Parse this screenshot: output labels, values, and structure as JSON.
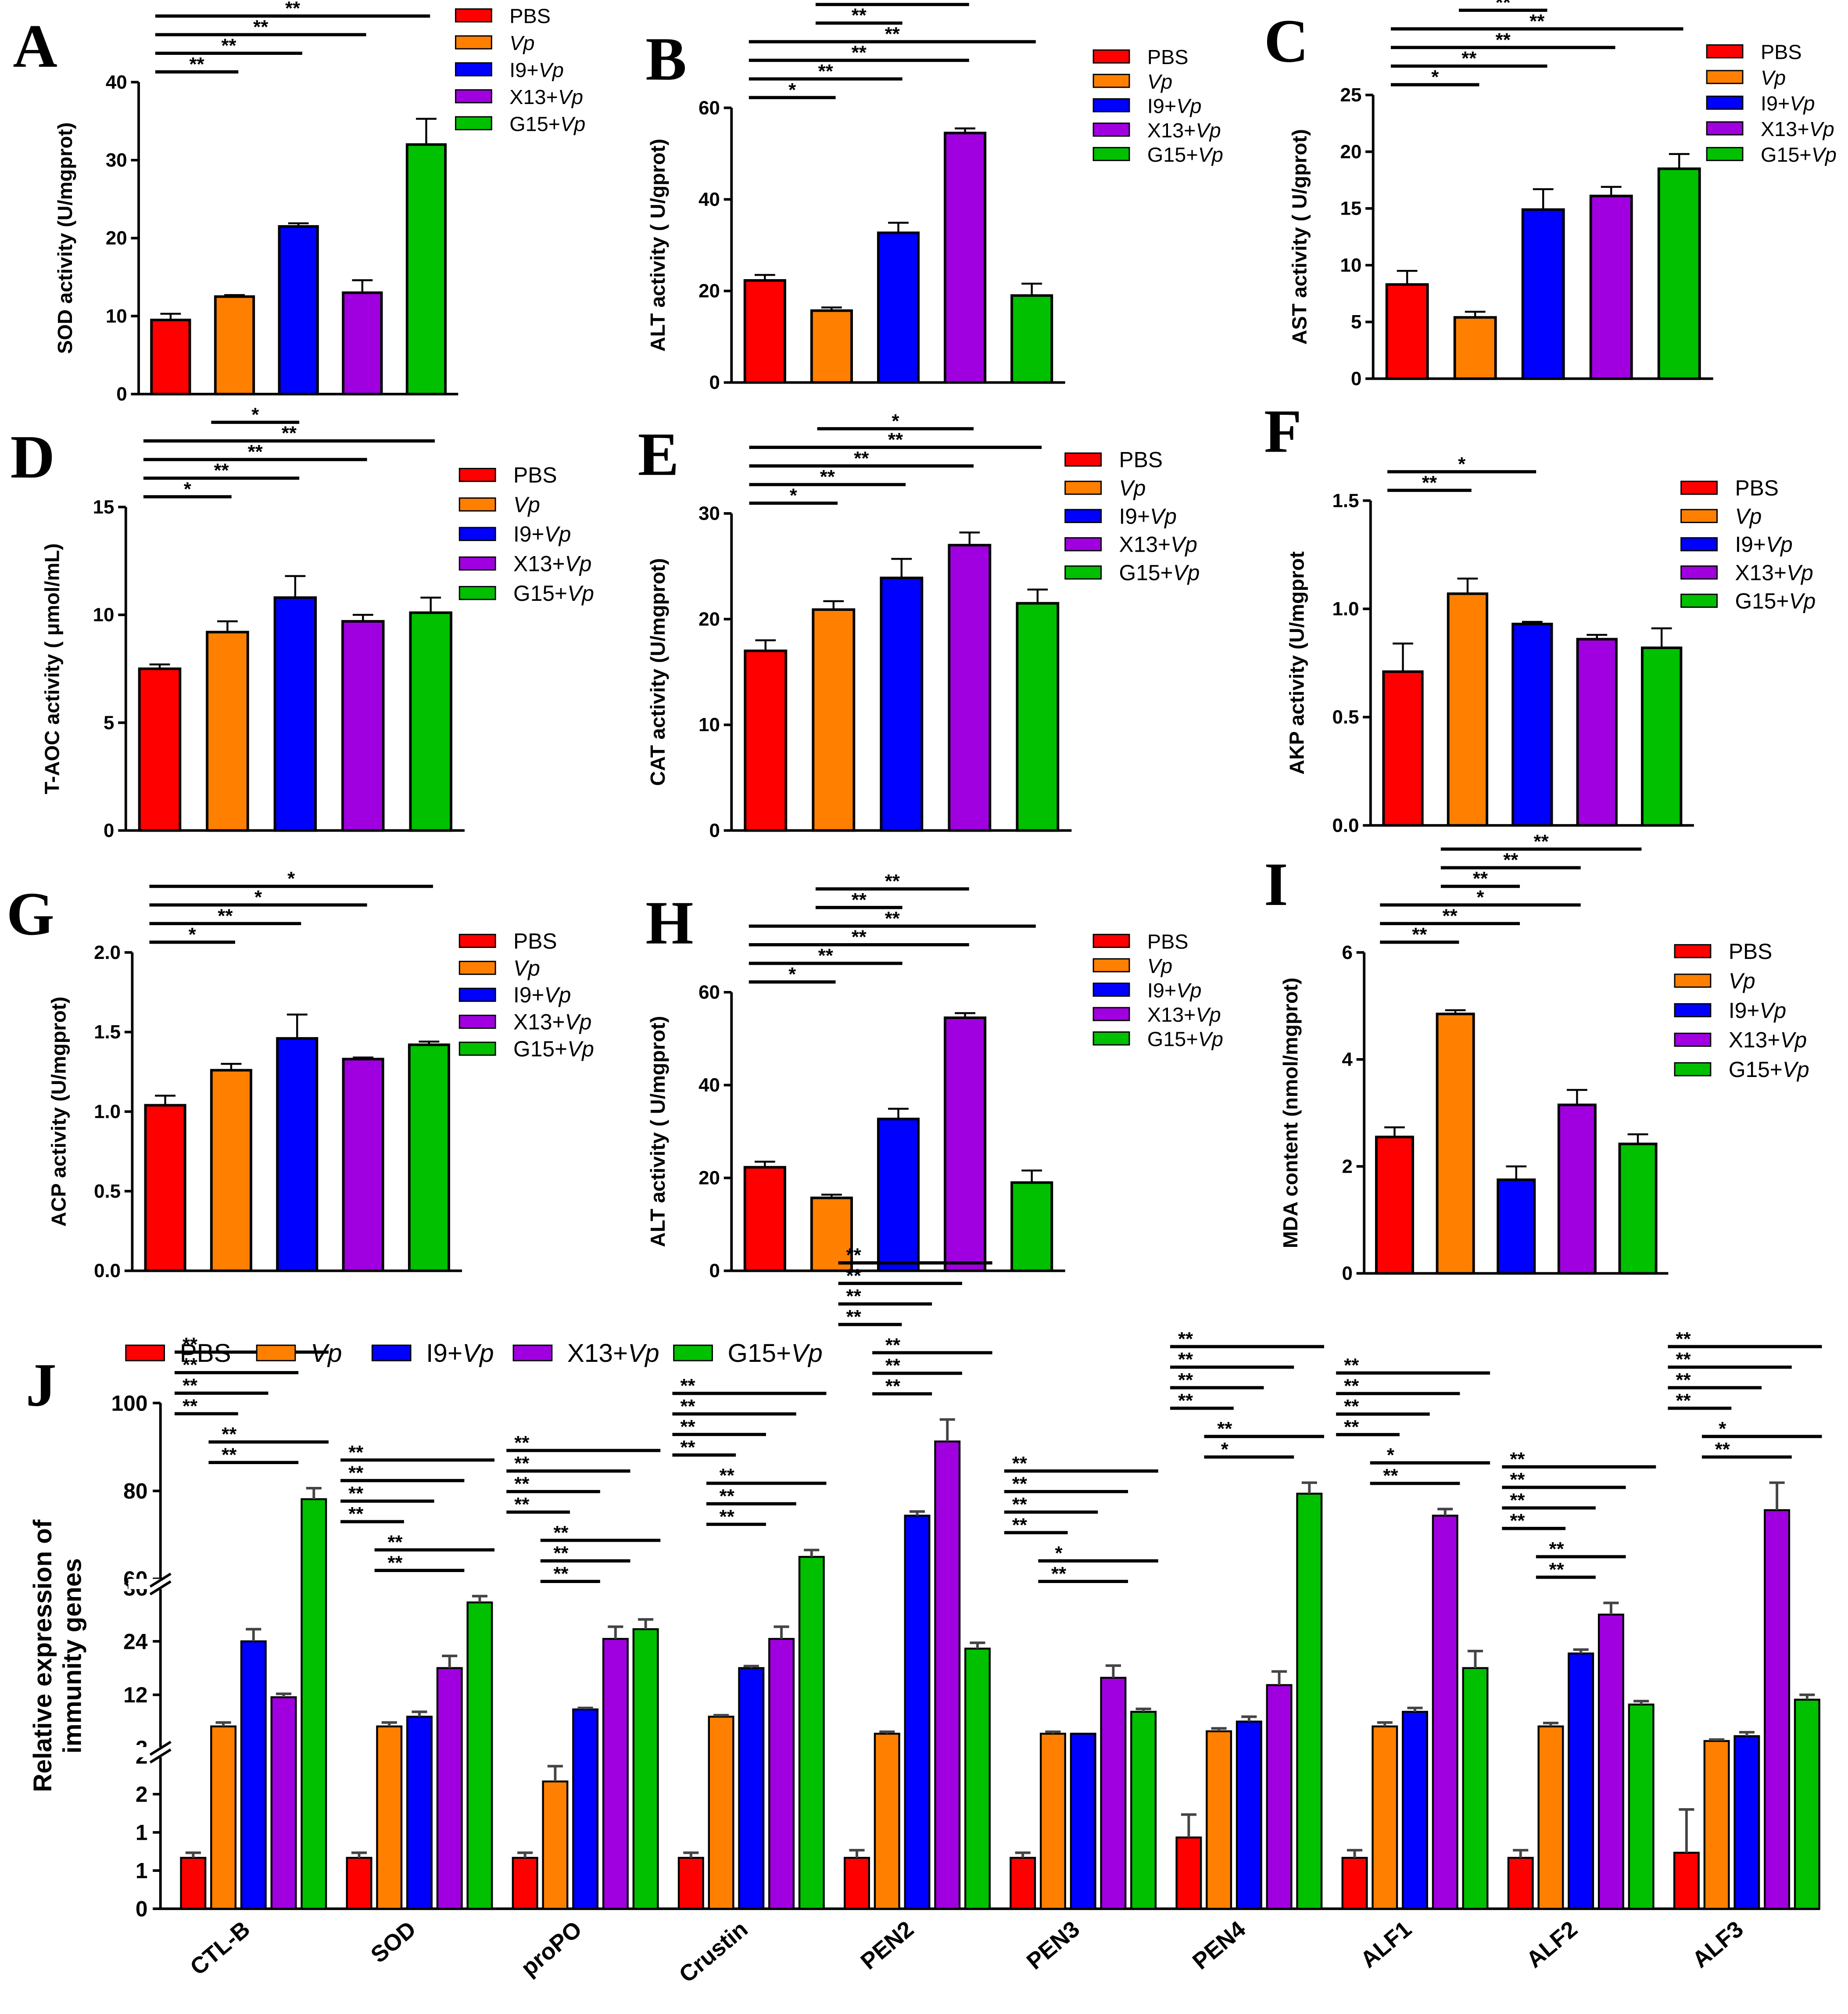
{
  "groups": [
    "PBS",
    "Vp",
    "I9+Vp",
    "X13+Vp",
    "G15+Vp"
  ],
  "colors": [
    "#ff0000",
    "#ff8000",
    "#0000ff",
    "#a000e0",
    "#00c000"
  ],
  "chart_data": [
    {
      "id": "A",
      "type": "bar",
      "ylabel": "SOD activity (U/mgprot)",
      "ylim": [
        0,
        40
      ],
      "ticks": [
        0,
        10,
        20,
        30,
        40
      ],
      "values": [
        9.5,
        12.5,
        21.5,
        13,
        32
      ],
      "errors": [
        0.8,
        0.2,
        0.4,
        1.6,
        3.3
      ],
      "sig": [
        {
          "a": 0,
          "b": 1,
          "t": "**"
        },
        {
          "a": 0,
          "b": 2,
          "t": "**"
        },
        {
          "a": 0,
          "b": 3,
          "t": "**"
        },
        {
          "a": 0,
          "b": 4,
          "t": "**"
        },
        {
          "a": 1,
          "b": 2,
          "t": "**"
        },
        {
          "a": 1,
          "b": 4,
          "t": "**"
        }
      ]
    },
    {
      "id": "B",
      "type": "bar",
      "ylabel": "ALT activity ( U/gprot)",
      "ylim": [
        0,
        60
      ],
      "ticks": [
        0,
        20,
        40,
        60
      ],
      "values": [
        22.3,
        15.7,
        32.7,
        54.5,
        19
      ],
      "errors": [
        1.2,
        0.7,
        2.2,
        1,
        2.6
      ],
      "sig": [
        {
          "a": 0,
          "b": 1,
          "t": "*"
        },
        {
          "a": 0,
          "b": 2,
          "t": "**"
        },
        {
          "a": 0,
          "b": 3,
          "t": "**"
        },
        {
          "a": 0,
          "b": 4,
          "t": "**"
        },
        {
          "a": 1,
          "b": 2,
          "t": "**"
        },
        {
          "a": 1,
          "b": 3,
          "t": "**"
        }
      ]
    },
    {
      "id": "C",
      "type": "bar",
      "ylabel": "AST activity ( U/gprot)",
      "ylim": [
        0,
        25
      ],
      "ticks": [
        0,
        5,
        10,
        15,
        20,
        25
      ],
      "values": [
        8.3,
        5.4,
        14.9,
        16.1,
        18.5
      ],
      "errors": [
        1.2,
        0.5,
        1.8,
        0.8,
        1.3
      ],
      "sig": [
        {
          "a": 0,
          "b": 1,
          "t": "*"
        },
        {
          "a": 0,
          "b": 2,
          "t": "**"
        },
        {
          "a": 0,
          "b": 3,
          "t": "**"
        },
        {
          "a": 0,
          "b": 4,
          "t": "**"
        },
        {
          "a": 1,
          "b": 2,
          "t": "**"
        },
        {
          "a": 1,
          "b": 3,
          "t": "**"
        },
        {
          "a": 1,
          "b": 4,
          "t": "**"
        }
      ]
    },
    {
      "id": "D",
      "type": "bar",
      "ylabel": "T-AOC activity ( μmol/mL)",
      "ylim": [
        0,
        15
      ],
      "ticks": [
        0,
        5,
        10,
        15
      ],
      "values": [
        7.5,
        9.2,
        10.8,
        9.7,
        10.1
      ],
      "errors": [
        0.2,
        0.5,
        1,
        0.3,
        0.7
      ],
      "sig": [
        {
          "a": 0,
          "b": 1,
          "t": "*"
        },
        {
          "a": 0,
          "b": 2,
          "t": "**"
        },
        {
          "a": 0,
          "b": 3,
          "t": "**"
        },
        {
          "a": 0,
          "b": 4,
          "t": "**"
        },
        {
          "a": 1,
          "b": 2,
          "t": "*"
        }
      ]
    },
    {
      "id": "E",
      "type": "bar",
      "ylabel": "CAT activity (U/mgprot)",
      "ylim": [
        0,
        30
      ],
      "ticks": [
        0,
        10,
        20,
        30
      ],
      "values": [
        17,
        20.9,
        23.9,
        27,
        21.5
      ],
      "errors": [
        1,
        0.8,
        1.8,
        1.2,
        1.3
      ],
      "sig": [
        {
          "a": 0,
          "b": 1,
          "t": "*"
        },
        {
          "a": 0,
          "b": 2,
          "t": "**"
        },
        {
          "a": 0,
          "b": 3,
          "t": "**"
        },
        {
          "a": 0,
          "b": 4,
          "t": "**"
        },
        {
          "a": 1,
          "b": 3,
          "t": "*"
        }
      ]
    },
    {
      "id": "F",
      "type": "bar",
      "ylabel": "AKP activity (U/mgprot",
      "ylim": [
        0,
        1.5
      ],
      "ticks": [
        "0.0",
        "0.5",
        "1.0",
        "1.5"
      ],
      "values": [
        0.71,
        1.07,
        0.93,
        0.86,
        0.82
      ],
      "errors": [
        0.13,
        0.07,
        0.01,
        0.02,
        0.09
      ],
      "sig": [
        {
          "a": 0,
          "b": 1,
          "t": "**"
        },
        {
          "a": 0,
          "b": 2,
          "t": "*"
        }
      ]
    },
    {
      "id": "G",
      "type": "bar",
      "ylabel": "ACP activity (U/mgprot)",
      "ylim": [
        0,
        2
      ],
      "ticks": [
        "0.0",
        "0.5",
        "1.0",
        "1.5",
        "2.0"
      ],
      "values": [
        1.04,
        1.26,
        1.46,
        1.33,
        1.42
      ],
      "errors": [
        0.06,
        0.04,
        0.15,
        0.01,
        0.02
      ],
      "sig": [
        {
          "a": 0,
          "b": 1,
          "t": "*"
        },
        {
          "a": 0,
          "b": 2,
          "t": "**"
        },
        {
          "a": 0,
          "b": 3,
          "t": "*"
        },
        {
          "a": 0,
          "b": 4,
          "t": "*"
        }
      ]
    },
    {
      "id": "H",
      "type": "bar",
      "ylabel": "ALT activity ( U/mgprot)",
      "ylim": [
        0,
        60
      ],
      "ticks": [
        0,
        20,
        40,
        60
      ],
      "values": [
        22.3,
        15.7,
        32.7,
        54.5,
        19
      ],
      "errors": [
        1.2,
        0.7,
        2.2,
        1,
        2.6
      ],
      "sig": [
        {
          "a": 0,
          "b": 1,
          "t": "*"
        },
        {
          "a": 0,
          "b": 2,
          "t": "**"
        },
        {
          "a": 0,
          "b": 3,
          "t": "**"
        },
        {
          "a": 0,
          "b": 4,
          "t": "**"
        },
        {
          "a": 1,
          "b": 2,
          "t": "**"
        },
        {
          "a": 1,
          "b": 3,
          "t": "**"
        }
      ]
    },
    {
      "id": "I",
      "type": "bar",
      "ylabel": "MDA content (nmol/mgprot)",
      "ylim": [
        0,
        6
      ],
      "ticks": [
        0,
        2,
        4,
        6
      ],
      "values": [
        2.55,
        4.85,
        1.75,
        3.15,
        2.42
      ],
      "errors": [
        0.18,
        0.07,
        0.25,
        0.28,
        0.18
      ],
      "sig": [
        {
          "a": 0,
          "b": 1,
          "t": "**"
        },
        {
          "a": 0,
          "b": 2,
          "t": "**"
        },
        {
          "a": 0,
          "b": 3,
          "t": "*"
        },
        {
          "a": 1,
          "b": 2,
          "t": "**"
        },
        {
          "a": 1,
          "b": 3,
          "t": "**"
        },
        {
          "a": 1,
          "b": 4,
          "t": "**"
        }
      ]
    },
    {
      "id": "J",
      "type": "bar",
      "ylabel": "Relative expression of immunity genes",
      "broken_axis": true,
      "segments": [
        {
          "lo": 0,
          "hi": 3,
          "labels": [
            "0",
            "1",
            "1",
            "2",
            "2"
          ]
        },
        {
          "lo": 3,
          "hi": 36,
          "labels": [
            "2",
            "12",
            "24",
            "36"
          ]
        },
        {
          "lo": 36,
          "hi": 100,
          "labels": [
            "60",
            "80",
            "100"
          ]
        }
      ],
      "categories": [
        "CTL-B",
        "SOD",
        "proPO",
        "Crustin",
        "PEN2",
        "PEN3",
        "PEN4",
        "ALF1",
        "ALF2",
        "ALF3"
      ],
      "values": [
        [
          1,
          7.5,
          25,
          13.5,
          65
        ],
        [
          1,
          7.5,
          9.5,
          19.5,
          33
        ],
        [
          1,
          2.5,
          11,
          25.5,
          27.5
        ],
        [
          1,
          9.5,
          19.5,
          25.5,
          44
        ],
        [
          1,
          6,
          59,
          86,
          23.5
        ],
        [
          1,
          6,
          6,
          17.5,
          10.5
        ],
        [
          1.4,
          6.5,
          8.5,
          16,
          67
        ],
        [
          1,
          7.5,
          10.5,
          59,
          19.5
        ],
        [
          1,
          7.5,
          22.5,
          30.5,
          12
        ],
        [
          1.1,
          4.5,
          5.5,
          61,
          13
        ]
      ],
      "errors": [
        [
          0.1,
          0.8,
          2.5,
          0.7,
          4
        ],
        [
          0.1,
          0.8,
          1,
          2.5,
          1.3
        ],
        [
          0.1,
          0.3,
          0.3,
          2.5,
          2
        ],
        [
          0.1,
          0.3,
          0.4,
          2.5,
          2.5
        ],
        [
          0.15,
          0.4,
          1.5,
          8,
          1.2
        ],
        [
          0.1,
          0.4,
          0,
          2.5,
          0.6
        ],
        [
          0.45,
          0.6,
          1,
          2.8,
          4
        ],
        [
          0.15,
          0.8,
          0.8,
          2.4,
          3.5
        ],
        [
          0.15,
          0.7,
          0.8,
          2.4,
          0.7
        ],
        [
          0.85,
          0.3,
          0.8,
          10,
          1
        ]
      ],
      "sig": [
        [
          {
            "a": 0,
            "b": 1,
            "t": "**"
          },
          {
            "a": 0,
            "b": 2,
            "t": "**"
          },
          {
            "a": 0,
            "b": 3,
            "t": "**"
          },
          {
            "a": 0,
            "b": 4,
            "t": "**"
          },
          {
            "a": 1,
            "b": 3,
            "t": "**"
          },
          {
            "a": 1,
            "b": 4,
            "t": "**"
          }
        ],
        [
          {
            "a": 0,
            "b": 1,
            "t": "**"
          },
          {
            "a": 0,
            "b": 2,
            "t": "**"
          },
          {
            "a": 0,
            "b": 3,
            "t": "**"
          },
          {
            "a": 0,
            "b": 4,
            "t": "**"
          },
          {
            "a": 1,
            "b": 3,
            "t": "**"
          },
          {
            "a": 1,
            "b": 4,
            "t": "**"
          }
        ],
        [
          {
            "a": 0,
            "b": 1,
            "t": "**"
          },
          {
            "a": 0,
            "b": 2,
            "t": "**"
          },
          {
            "a": 0,
            "b": 3,
            "t": "**"
          },
          {
            "a": 0,
            "b": 4,
            "t": "**"
          },
          {
            "a": 1,
            "b": 2,
            "t": "**"
          },
          {
            "a": 1,
            "b": 3,
            "t": "**"
          },
          {
            "a": 1,
            "b": 4,
            "t": "**"
          }
        ],
        [
          {
            "a": 0,
            "b": 1,
            "t": "**"
          },
          {
            "a": 0,
            "b": 2,
            "t": "**"
          },
          {
            "a": 0,
            "b": 3,
            "t": "**"
          },
          {
            "a": 0,
            "b": 4,
            "t": "**"
          },
          {
            "a": 1,
            "b": 2,
            "t": "**"
          },
          {
            "a": 1,
            "b": 3,
            "t": "**"
          },
          {
            "a": 1,
            "b": 4,
            "t": "**"
          }
        ],
        [
          {
            "a": 0,
            "b": 1,
            "t": "**"
          },
          {
            "a": 0,
            "b": 2,
            "t": "**"
          },
          {
            "a": 0,
            "b": 3,
            "t": "**"
          },
          {
            "a": 0,
            "b": 4,
            "t": "**"
          },
          {
            "a": 1,
            "b": 2,
            "t": "**"
          },
          {
            "a": 1,
            "b": 3,
            "t": "**"
          },
          {
            "a": 1,
            "b": 4,
            "t": "**"
          }
        ],
        [
          {
            "a": 0,
            "b": 1,
            "t": "**"
          },
          {
            "a": 0,
            "b": 2,
            "t": "**"
          },
          {
            "a": 0,
            "b": 3,
            "t": "**"
          },
          {
            "a": 0,
            "b": 4,
            "t": "**"
          },
          {
            "a": 1,
            "b": 3,
            "t": "**"
          },
          {
            "a": 1,
            "b": 4,
            "t": "*"
          }
        ],
        [
          {
            "a": 0,
            "b": 1,
            "t": "**"
          },
          {
            "a": 0,
            "b": 2,
            "t": "**"
          },
          {
            "a": 0,
            "b": 3,
            "t": "**"
          },
          {
            "a": 0,
            "b": 4,
            "t": "**"
          },
          {
            "a": 1,
            "b": 3,
            "t": "*"
          },
          {
            "a": 1,
            "b": 4,
            "t": "**"
          }
        ],
        [
          {
            "a": 0,
            "b": 1,
            "t": "**"
          },
          {
            "a": 0,
            "b": 2,
            "t": "**"
          },
          {
            "a": 0,
            "b": 3,
            "t": "**"
          },
          {
            "a": 0,
            "b": 4,
            "t": "**"
          },
          {
            "a": 1,
            "b": 3,
            "t": "**"
          },
          {
            "a": 1,
            "b": 4,
            "t": "*"
          }
        ],
        [
          {
            "a": 0,
            "b": 1,
            "t": "**"
          },
          {
            "a": 0,
            "b": 2,
            "t": "**"
          },
          {
            "a": 0,
            "b": 3,
            "t": "**"
          },
          {
            "a": 0,
            "b": 4,
            "t": "**"
          },
          {
            "a": 1,
            "b": 2,
            "t": "**"
          },
          {
            "a": 1,
            "b": 3,
            "t": "**"
          }
        ],
        [
          {
            "a": 0,
            "b": 1,
            "t": "**"
          },
          {
            "a": 0,
            "b": 2,
            "t": "**"
          },
          {
            "a": 0,
            "b": 3,
            "t": "**"
          },
          {
            "a": 0,
            "b": 4,
            "t": "**"
          },
          {
            "a": 1,
            "b": 3,
            "t": "**"
          },
          {
            "a": 1,
            "b": 4,
            "t": "*"
          }
        ]
      ]
    }
  ]
}
